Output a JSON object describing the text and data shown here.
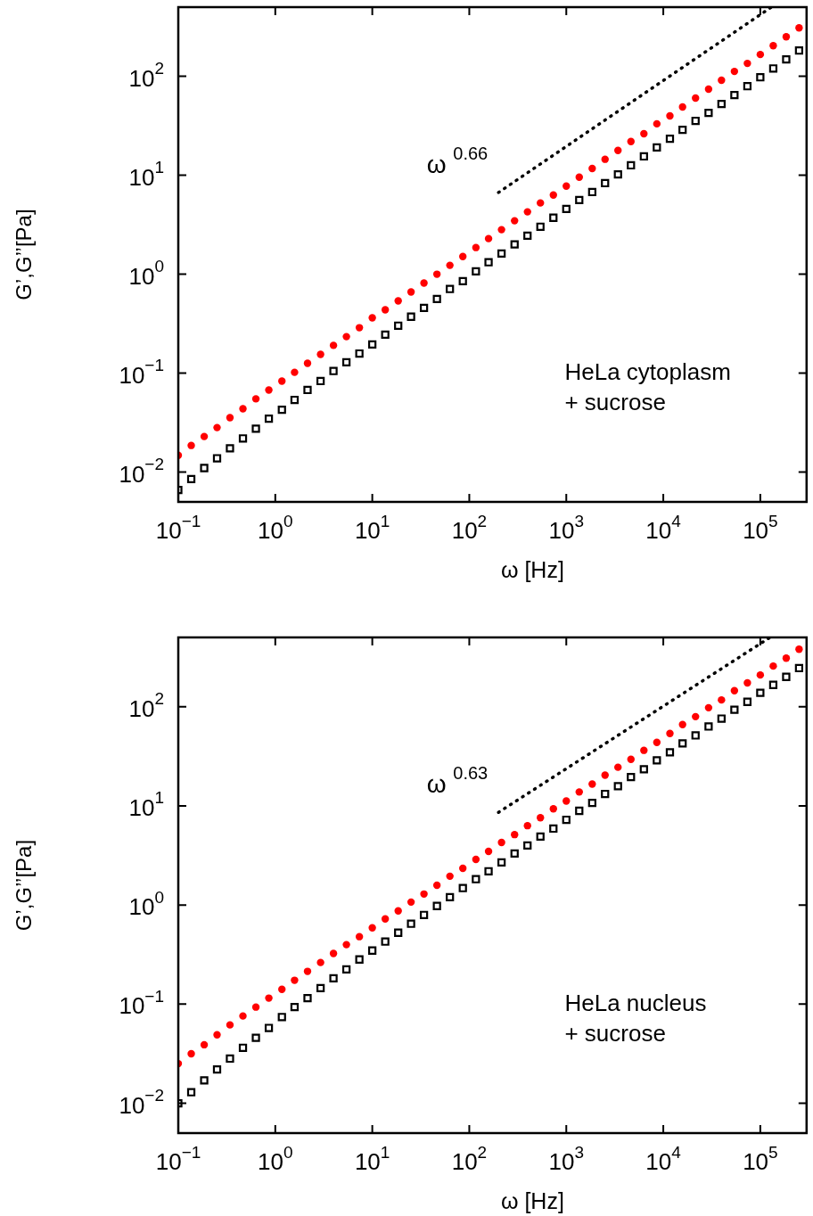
{
  "chart_data": [
    {
      "type": "scatter",
      "xlabel": "ω [Hz]",
      "ylabel": "G’,G’’[Pa]",
      "log": "xy",
      "legend": false,
      "xlim": [
        0.1,
        300000
      ],
      "ylim": [
        0.005,
        500
      ],
      "xticks": [
        {
          "value": 0.1,
          "label": "10$^{−1}$"
        },
        {
          "value": 1,
          "label": "10$^{0}$"
        },
        {
          "value": 10,
          "label": "10$^{1}$"
        },
        {
          "value": 100,
          "label": "10$^{2}$"
        },
        {
          "value": 1000,
          "label": "10$^{3}$"
        },
        {
          "value": 10000,
          "label": "10$^{4}$"
        },
        {
          "value": 100000,
          "label": "10$^{5}$"
        }
      ],
      "yticks": [
        {
          "value": 0.01,
          "label": "10$^{−2}$"
        },
        {
          "value": 0.1,
          "label": "10$^{−1}$"
        },
        {
          "value": 1,
          "label": "10$^{0}$"
        },
        {
          "value": 10,
          "label": "10$^{1}$"
        },
        {
          "value": 100,
          "label": "10$^{2}$"
        }
      ],
      "x": [
        0.1,
        0.136,
        0.185,
        0.251,
        0.341,
        0.464,
        0.631,
        0.858,
        1.17,
        1.58,
        2.15,
        2.93,
        3.98,
        5.41,
        7.36,
        10,
        13.6,
        18.5,
        25.1,
        34.1,
        46.4,
        63.1,
        85.8,
        117,
        158,
        215,
        293,
        398,
        541,
        736,
        1000,
        1360,
        1850,
        2510,
        3410,
        4640,
        6310,
        8580,
        11700,
        15800,
        21500,
        29300,
        39800,
        54100,
        73600,
        100000,
        136000,
        185000,
        251000
      ],
      "series": [
        {
          "color": "#ff0000",
          "marker": "circle",
          "values": [
            0.0148,
            0.0186,
            0.0229,
            0.0282,
            0.0355,
            0.0437,
            0.055,
            0.0676,
            0.0832,
            0.102,
            0.126,
            0.155,
            0.191,
            0.234,
            0.288,
            0.363,
            0.437,
            0.537,
            0.661,
            0.813,
            1.0,
            1.23,
            1.51,
            1.86,
            2.29,
            2.82,
            3.47,
            4.27,
            5.25,
            6.31,
            7.76,
            9.55,
            11.7,
            14.5,
            17.8,
            21.9,
            26.3,
            33.1,
            39.8,
            49.0,
            60.3,
            74.1,
            91.2,
            112,
            135,
            166,
            204,
            251,
            309
          ]
        },
        {
          "color": "#000000",
          "marker": "square",
          "values": [
            0.00661,
            0.00851,
            0.011,
            0.0138,
            0.0174,
            0.0219,
            0.0275,
            0.0347,
            0.0427,
            0.0537,
            0.0676,
            0.0832,
            0.105,
            0.129,
            0.158,
            0.195,
            0.245,
            0.302,
            0.372,
            0.457,
            0.562,
            0.708,
            0.851,
            1.07,
            1.32,
            1.62,
            2.0,
            2.45,
            3.02,
            3.72,
            4.57,
            5.62,
            6.76,
            8.32,
            10.2,
            12.6,
            15.5,
            19.1,
            23.4,
            28.8,
            35.5,
            42.7,
            52.5,
            64.6,
            79.4,
            97.7,
            120,
            148,
            182
          ]
        },
        {
          "type": "line",
          "color": "#000000",
          "marker": "none",
          "line_style": "dotted",
          "x": [
            200,
            130000
          ],
          "values": [
            6.7,
            500
          ]
        }
      ],
      "annotations": [
        {
          "text": "ω $^{0.66}$",
          "x": 200,
          "y": 6.7
        },
        "HeLa cytoplasm\n+ sucrose"
      ]
    },
    {
      "type": "scatter",
      "xlabel": "ω [Hz]",
      "ylabel": "G’,G’’[Pa]",
      "log": "xy",
      "legend": false,
      "xlim": [
        0.1,
        300000
      ],
      "ylim": [
        0.005,
        500
      ],
      "xticks": [
        {
          "value": 0.1,
          "label": "10$^{−1}$"
        },
        {
          "value": 1,
          "label": "10$^{0}$"
        },
        {
          "value": 10,
          "label": "10$^{1}$"
        },
        {
          "value": 100,
          "label": "10$^{2}$"
        },
        {
          "value": 1000,
          "label": "10$^{3}$"
        },
        {
          "value": 10000,
          "label": "10$^{4}$"
        },
        {
          "value": 100000,
          "label": "10$^{5}$"
        }
      ],
      "yticks": [
        {
          "value": 0.01,
          "label": "10$^{−2}$"
        },
        {
          "value": 0.1,
          "label": "10$^{−1}$"
        },
        {
          "value": 1,
          "label": "10$^{0}$"
        },
        {
          "value": 10,
          "label": "10$^{1}$"
        },
        {
          "value": 100,
          "label": "10$^{2}$"
        }
      ],
      "x": [
        0.1,
        0.136,
        0.185,
        0.251,
        0.341,
        0.464,
        0.631,
        0.858,
        1.17,
        1.58,
        2.15,
        2.93,
        3.98,
        5.41,
        7.36,
        10,
        13.6,
        18.5,
        25.1,
        34.1,
        46.4,
        63.1,
        85.8,
        117,
        158,
        215,
        293,
        398,
        541,
        736,
        1000,
        1360,
        1850,
        2510,
        3410,
        4640,
        6310,
        8580,
        11700,
        15800,
        21500,
        29300,
        39800,
        54100,
        73600,
        100000,
        136000,
        185000,
        251000
      ],
      "series": [
        {
          "color": "#ff0000",
          "marker": "circle",
          "values": [
            0.0251,
            0.0316,
            0.0389,
            0.049,
            0.0617,
            0.0759,
            0.0933,
            0.115,
            0.141,
            0.174,
            0.214,
            0.263,
            0.324,
            0.398,
            0.479,
            0.589,
            0.724,
            0.871,
            1.07,
            1.29,
            1.58,
            1.95,
            2.34,
            2.88,
            3.47,
            4.27,
            5.13,
            6.31,
            7.59,
            9.33,
            11.2,
            13.8,
            16.6,
            20.4,
            24.5,
            29.5,
            36.3,
            43.7,
            53.7,
            66.1,
            79.4,
            97.7,
            117,
            145,
            174,
            209,
            257,
            309,
            380
          ]
        },
        {
          "color": "#000000",
          "marker": "square",
          "values": [
            0.01,
            0.0129,
            0.017,
            0.0219,
            0.0282,
            0.0363,
            0.0457,
            0.0575,
            0.0741,
            0.0933,
            0.115,
            0.145,
            0.182,
            0.224,
            0.282,
            0.347,
            0.427,
            0.525,
            0.646,
            0.794,
            0.977,
            1.2,
            1.48,
            1.82,
            2.19,
            2.69,
            3.31,
            3.98,
            4.9,
            5.89,
            7.24,
            8.91,
            10.7,
            13.2,
            15.8,
            19.5,
            23.4,
            28.8,
            34.7,
            42.7,
            51.3,
            63.1,
            75.9,
            93.3,
            112,
            138,
            166,
            200,
            245
          ]
        },
        {
          "type": "line",
          "color": "#000000",
          "marker": "none",
          "line_style": "dotted",
          "x": [
            200,
            126000
          ],
          "values": [
            8.6,
            500
          ]
        }
      ],
      "annotations": [
        {
          "text": "ω $^{0.63}$",
          "x": 200,
          "y": 8.6
        },
        "HeLa nucleus\n+ sucrose"
      ]
    }
  ]
}
